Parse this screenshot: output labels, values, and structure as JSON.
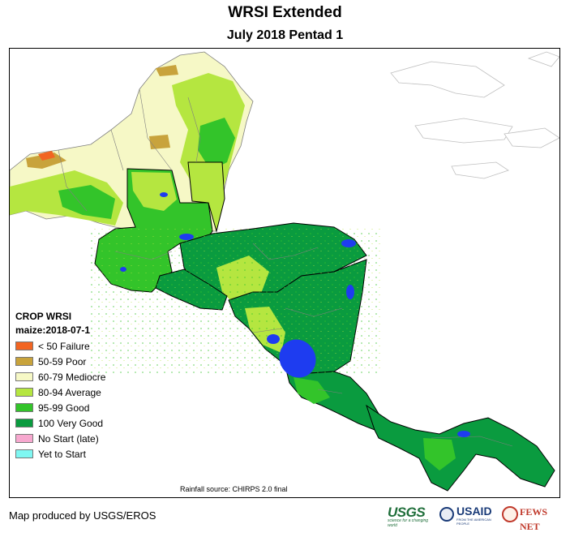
{
  "header": {
    "title": "WRSI Extended",
    "subtitle": "July 2018 Pentad 1"
  },
  "legend": {
    "title": "CROP WRSI",
    "subtitle": "maize:2018-07-1",
    "items": [
      {
        "label": "< 50  Failure",
        "color": "#f26522"
      },
      {
        "label": "50-59 Poor",
        "color": "#c8a33c"
      },
      {
        "label": "60-79 Mediocre",
        "color": "#f6f8c6"
      },
      {
        "label": "80-94 Average",
        "color": "#b5e640"
      },
      {
        "label": "95-99 Good",
        "color": "#33c42a"
      },
      {
        "label": "100 Very Good",
        "color": "#0a9b3f"
      },
      {
        "label": "No Start (late)",
        "color": "#f7a8cf"
      },
      {
        "label": "Yet to Start",
        "color": "#7ff7f2"
      }
    ]
  },
  "map": {
    "water_color": "#1e3cf0"
  },
  "footer": {
    "rainfall_source": "Rainfall source: CHIRPS 2.0 final",
    "credit": "Map produced by USGS/EROS",
    "logos": {
      "usgs": "USGS",
      "usgs_tagline": "science for a changing world",
      "usaid": "USAID",
      "usaid_tagline": "FROM THE AMERICAN PEOPLE",
      "fews": "FEWS NET"
    }
  }
}
